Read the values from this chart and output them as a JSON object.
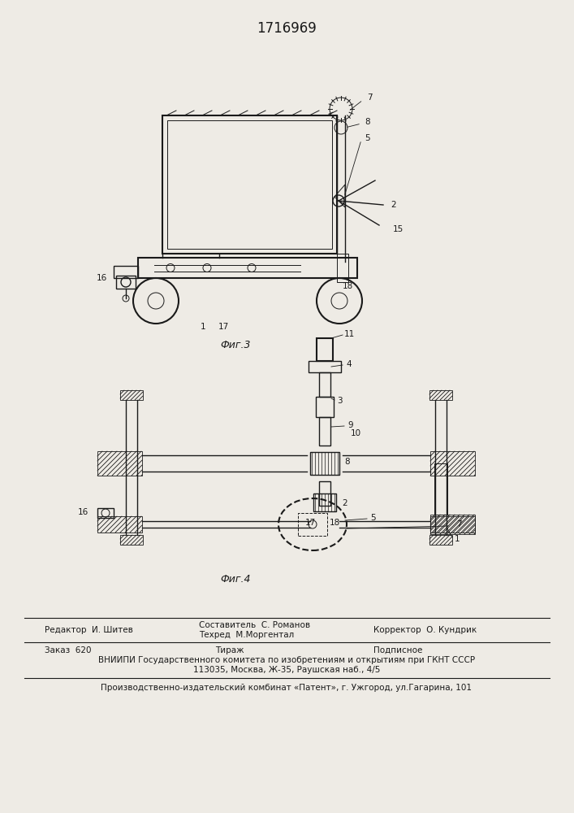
{
  "title": "1716969",
  "bg_color": "#eeebe5",
  "line_color": "#1a1a1a",
  "fig1_caption": "Фиг.3",
  "fig2_caption": "Фиг.4",
  "footer": {
    "editor_label": "Редактор  И. Шитев",
    "composer_line1": "Составитель  С. Романов",
    "composer_line2": "Техред  М.Моргентал",
    "corrector": "Корректор  О. Кундрик",
    "order": "Заказ  620",
    "tirazh": "Тираж",
    "podpisnoe": "Подписное",
    "vniiipi1": "ВНИИПИ Государственного комитета по изобретениям и открытиям при ГКНТ СССР",
    "vniiipi2": "113035, Москва, Ж-35, Раушская наб., 4/5",
    "publisher": "Производственно-издательский комбинат «Патент», г. Ужгород, ул.Гагарина, 101"
  }
}
